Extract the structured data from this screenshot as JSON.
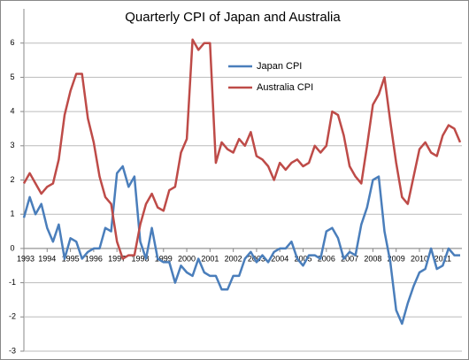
{
  "chart_data": {
    "type": "line",
    "title": "Quarterly CPI of Japan and Australia",
    "categories": [
      "1993",
      null,
      null,
      null,
      "1994",
      null,
      null,
      null,
      "1995",
      null,
      null,
      null,
      "1996",
      null,
      null,
      null,
      "1997",
      null,
      null,
      null,
      "1998",
      null,
      null,
      null,
      "1999",
      null,
      null,
      null,
      "2000",
      null,
      null,
      null,
      "2001",
      null,
      null,
      null,
      "2002",
      null,
      null,
      null,
      "2003",
      null,
      null,
      null,
      "2004",
      null,
      null,
      null,
      "2005",
      null,
      null,
      null,
      "2006",
      null,
      null,
      null,
      "2007",
      null,
      null,
      null,
      "2008",
      null,
      null,
      null,
      "2009",
      null,
      null,
      null,
      "2010",
      null,
      null,
      null,
      "2011",
      null,
      null,
      null
    ],
    "series": [
      {
        "name": "Japan CPI",
        "color": "#4a7ebb",
        "values": [
          0.9,
          1.5,
          1.0,
          1.3,
          0.6,
          0.2,
          0.7,
          -0.3,
          0.3,
          0.2,
          -0.3,
          -0.1,
          0.0,
          0.0,
          0.6,
          0.5,
          2.2,
          2.4,
          1.8,
          2.1,
          0.2,
          -0.3,
          0.6,
          -0.3,
          -0.4,
          -0.4,
          -1.0,
          -0.5,
          -0.7,
          -0.8,
          -0.3,
          -0.7,
          -0.8,
          -0.8,
          -1.2,
          -1.2,
          -0.8,
          -0.8,
          -0.3,
          -0.1,
          -0.4,
          -0.2,
          -0.4,
          -0.1,
          0.0,
          0.0,
          0.2,
          -0.3,
          -0.5,
          -0.2,
          -0.2,
          -0.3,
          0.5,
          0.6,
          0.3,
          -0.3,
          -0.1,
          -0.2,
          0.7,
          1.2,
          2.0,
          2.1,
          0.5,
          -0.4,
          -1.8,
          -2.2,
          -1.6,
          -1.1,
          -0.7,
          -0.6,
          0.0,
          -0.6,
          -0.5,
          0.0,
          -0.2,
          -0.2
        ]
      },
      {
        "name": "Australia CPI",
        "color": "#be4b48",
        "values": [
          1.9,
          2.2,
          1.9,
          1.6,
          1.8,
          1.9,
          2.6,
          3.9,
          4.6,
          5.1,
          5.1,
          3.8,
          3.1,
          2.1,
          1.5,
          1.3,
          0.2,
          -0.3,
          -0.2,
          -0.2,
          0.7,
          1.3,
          1.6,
          1.2,
          1.1,
          1.7,
          1.8,
          2.8,
          3.2,
          6.1,
          5.8,
          6.0,
          6.0,
          2.5,
          3.1,
          2.9,
          2.8,
          3.2,
          3.0,
          3.4,
          2.7,
          2.6,
          2.4,
          2.0,
          2.5,
          2.3,
          2.5,
          2.6,
          2.4,
          2.5,
          3.0,
          2.8,
          3.0,
          4.0,
          3.9,
          3.3,
          2.4,
          2.1,
          1.9,
          3.0,
          4.2,
          4.5,
          5.0,
          3.7,
          2.5,
          1.5,
          1.3,
          2.1,
          2.9,
          3.1,
          2.8,
          2.7,
          3.3,
          3.6,
          3.5,
          3.1
        ]
      }
    ],
    "ylim": [
      -3,
      7
    ],
    "yticks": [
      -3,
      -2,
      -1,
      0,
      1,
      2,
      3,
      4,
      5,
      6
    ],
    "grid": true
  }
}
